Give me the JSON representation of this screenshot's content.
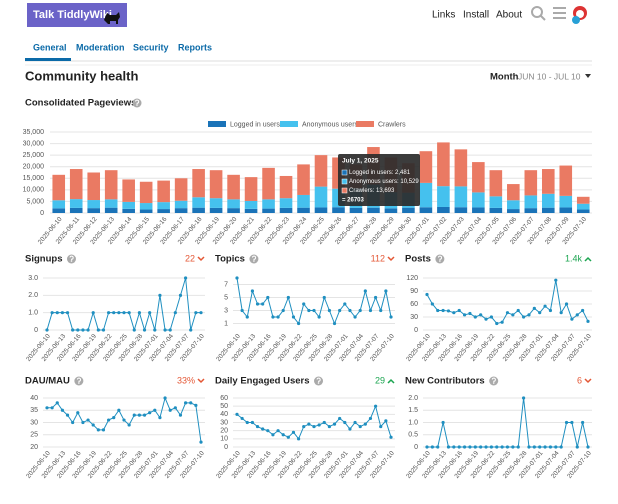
{
  "header": {
    "logo": "Talk TiddlyWiki",
    "links": [
      "Links",
      "Install",
      "About"
    ]
  },
  "tabs": {
    "items": [
      "General",
      "Moderation",
      "Security",
      "Reports"
    ],
    "active": 0
  },
  "section": {
    "title": "Community health",
    "period": "Month",
    "range": "JUN 10 - JUL 10"
  },
  "chart_data": [
    {
      "type": "bar",
      "stacked": true,
      "title": "Consolidated Pageviews",
      "categories": [
        "2025-06-10",
        "2025-06-11",
        "2025-06-12",
        "2025-06-13",
        "2025-06-14",
        "2025-06-15",
        "2025-06-16",
        "2025-06-17",
        "2025-06-18",
        "2025-06-19",
        "2025-06-20",
        "2025-06-21",
        "2025-06-22",
        "2025-06-23",
        "2025-06-24",
        "2025-06-25",
        "2025-06-26",
        "2025-06-27",
        "2025-06-28",
        "2025-06-29",
        "2025-06-30",
        "2025-07-01",
        "2025-07-02",
        "2025-07-03",
        "2025-07-04",
        "2025-07-05",
        "2025-07-06",
        "2025-07-07",
        "2025-07-08",
        "2025-07-09",
        "2025-07-10"
      ],
      "series": [
        {
          "name": "Logged in users",
          "color": "#1a73b8",
          "values": [
            2000,
            2200,
            2100,
            2300,
            1800,
            1500,
            1700,
            2100,
            2300,
            2200,
            2100,
            1800,
            1900,
            2200,
            2300,
            2400,
            2500,
            2200,
            2300,
            2000,
            2300,
            2481,
            2600,
            2500,
            2400,
            2200,
            1700,
            2100,
            2300,
            2400,
            1500
          ]
        },
        {
          "name": "Anonymous users",
          "color": "#45c1ee",
          "values": [
            3500,
            3800,
            3500,
            3600,
            3000,
            2800,
            3000,
            3200,
            4500,
            4200,
            3800,
            3400,
            4000,
            4200,
            5500,
            9000,
            8000,
            8500,
            10000,
            7000,
            6500,
            10529,
            9000,
            9000,
            6500,
            5000,
            3800,
            5500,
            6000,
            5000,
            2500
          ]
        },
        {
          "name": "Crawlers",
          "color": "#ea7a63",
          "values": [
            11000,
            13000,
            11900,
            12600,
            9700,
            9200,
            9300,
            9700,
            12200,
            12100,
            10600,
            10300,
            13600,
            9600,
            13200,
            13600,
            13500,
            10300,
            16200,
            15000,
            12700,
            13693,
            18900,
            16000,
            13100,
            11300,
            7000,
            10900,
            10700,
            13100,
            3000
          ]
        }
      ],
      "ylim": [
        0,
        35000
      ],
      "yticks": [
        0,
        {
          "value": 5000,
          "label": "5,000"
        },
        {
          "value": 10000,
          "label": "10,000"
        },
        {
          "value": 15000,
          "label": "15,000"
        },
        {
          "value": 20000,
          "label": "20,000"
        },
        {
          "value": 25000,
          "label": "25,000"
        },
        {
          "value": 30000,
          "label": "30,000"
        },
        {
          "value": 35000,
          "label": "35,000"
        }
      ],
      "grid": true,
      "legend": "top",
      "tooltip": {
        "title": "July 1, 2025",
        "lines": [
          "Logged in users: 2,481",
          "Anonymous users: 10,529",
          "Crawlers: 13,693"
        ],
        "total": "= 26703"
      }
    },
    {
      "type": "line",
      "title": "Signups",
      "change": "22",
      "trend": "down",
      "color": "#1f8fc0",
      "categories": [
        "2025-06-10",
        null,
        null,
        "2025-06-13",
        null,
        null,
        "2025-06-16",
        null,
        null,
        "2025-06-19",
        null,
        null,
        "2025-06-22",
        null,
        null,
        "2025-06-25",
        null,
        null,
        "2025-06-28",
        null,
        null,
        "2025-07-01",
        null,
        null,
        "2025-07-04",
        null,
        null,
        "2025-07-07",
        null,
        null,
        "2025-07-10"
      ],
      "values": [
        0,
        1,
        1,
        1,
        1,
        0,
        0,
        0,
        0,
        1,
        0,
        0,
        1,
        1,
        1,
        1,
        1,
        0,
        1,
        0,
        1,
        0,
        2,
        0,
        0,
        1,
        2,
        3,
        0,
        1,
        1
      ],
      "ylim": [
        0,
        3
      ],
      "yticks": [
        0,
        {
          "value": 1,
          "label": "1.0"
        },
        {
          "value": 2,
          "label": "2.0"
        },
        {
          "value": 3,
          "label": "3.0"
        }
      ],
      "grid": true
    },
    {
      "type": "line",
      "title": "Topics",
      "change": "112",
      "trend": "down",
      "color": "#1f8fc0",
      "categories": [
        "2025-06-10",
        null,
        null,
        "2025-06-13",
        null,
        null,
        "2025-06-16",
        null,
        null,
        "2025-06-19",
        null,
        null,
        "2025-06-22",
        null,
        null,
        "2025-06-25",
        null,
        null,
        "2025-06-28",
        null,
        null,
        "2025-07-01",
        null,
        null,
        "2025-07-04",
        null,
        null,
        "2025-07-07",
        null,
        null,
        "2025-07-10"
      ],
      "values": [
        8,
        3,
        2,
        6,
        4,
        4,
        5,
        2,
        2,
        3,
        5,
        2,
        1,
        4,
        3,
        3,
        2,
        5,
        3,
        1,
        3,
        4,
        3,
        2,
        3,
        6,
        3,
        5,
        3,
        6,
        2
      ],
      "ylim": [
        0,
        8
      ],
      "yticks": [
        1,
        3,
        5,
        7
      ],
      "grid": true
    },
    {
      "type": "line",
      "title": "Posts",
      "change": "1.4k",
      "trend": "up",
      "color": "#1f8fc0",
      "categories": [
        "2025-06-10",
        null,
        null,
        "2025-06-13",
        null,
        null,
        "2025-06-16",
        null,
        null,
        "2025-06-19",
        null,
        null,
        "2025-06-22",
        null,
        null,
        "2025-06-25",
        null,
        null,
        "2025-06-28",
        null,
        null,
        "2025-07-01",
        null,
        null,
        "2025-07-04",
        null,
        null,
        "2025-07-07",
        null,
        null,
        "2025-07-10"
      ],
      "values": [
        82,
        60,
        45,
        45,
        44,
        40,
        45,
        35,
        38,
        30,
        35,
        25,
        30,
        15,
        18,
        40,
        35,
        45,
        30,
        35,
        50,
        40,
        55,
        45,
        115,
        40,
        60,
        25,
        35,
        45,
        20
      ],
      "ylim": [
        0,
        120
      ],
      "yticks": [
        0,
        30,
        60,
        90,
        120
      ],
      "grid": true
    },
    {
      "type": "line",
      "title": "DAU/MAU",
      "change": "33%",
      "trend": "down",
      "color": "#1f8fc0",
      "categories": [
        "2025-06-10",
        null,
        null,
        "2025-06-13",
        null,
        null,
        "2025-06-16",
        null,
        null,
        "2025-06-19",
        null,
        null,
        "2025-06-22",
        null,
        null,
        "2025-06-25",
        null,
        null,
        "2025-06-28",
        null,
        null,
        "2025-07-01",
        null,
        null,
        "2025-07-04",
        null,
        null,
        "2025-07-07",
        null,
        null,
        "2025-07-10"
      ],
      "values": [
        36,
        36,
        38,
        35,
        33,
        30,
        34,
        30,
        31,
        29,
        27,
        27,
        31,
        32,
        35,
        31,
        29,
        33,
        33,
        33,
        34,
        35,
        32,
        40,
        35,
        36,
        33,
        38,
        38,
        37,
        22
      ],
      "ylim": [
        20,
        40
      ],
      "yticks": [
        20,
        25,
        30,
        35,
        40
      ],
      "grid": true
    },
    {
      "type": "line",
      "title": "Daily Engaged Users",
      "change": "29",
      "trend": "up",
      "color": "#1f8fc0",
      "categories": [
        "2025-06-10",
        null,
        null,
        "2025-06-13",
        null,
        null,
        "2025-06-16",
        null,
        null,
        "2025-06-19",
        null,
        null,
        "2025-06-22",
        null,
        null,
        "2025-06-25",
        null,
        null,
        "2025-06-28",
        null,
        null,
        "2025-07-01",
        null,
        null,
        "2025-07-04",
        null,
        null,
        "2025-07-07",
        null,
        null,
        "2025-07-10"
      ],
      "values": [
        40,
        35,
        30,
        30,
        25,
        22,
        20,
        15,
        20,
        15,
        12,
        18,
        10,
        25,
        28,
        25,
        27,
        30,
        25,
        28,
        35,
        30,
        22,
        30,
        25,
        28,
        35,
        50,
        25,
        32,
        12
      ],
      "ylim": [
        0,
        60
      ],
      "yticks": [
        0,
        10,
        20,
        30,
        40,
        50,
        60
      ],
      "grid": true
    },
    {
      "type": "line",
      "title": "New Contributors",
      "change": "6",
      "trend": "down",
      "color": "#1f8fc0",
      "categories": [
        "2025-06-10",
        null,
        null,
        "2025-06-13",
        null,
        null,
        "2025-06-16",
        null,
        null,
        "2025-06-19",
        null,
        null,
        "2025-06-22",
        null,
        null,
        "2025-06-25",
        null,
        null,
        "2025-06-28",
        null,
        null,
        "2025-07-01",
        null,
        null,
        "2025-07-04",
        null,
        null,
        "2025-07-07",
        null,
        null,
        "2025-07-10"
      ],
      "values": [
        0,
        0,
        0,
        1,
        0,
        0,
        0,
        0,
        0,
        0,
        0,
        0,
        0,
        0,
        0,
        0,
        0,
        0,
        2,
        0,
        0,
        0,
        0,
        0,
        0,
        0,
        1,
        1,
        0,
        1,
        0
      ],
      "ylim": [
        0,
        2
      ],
      "yticks": [
        0,
        {
          "value": 0.5,
          "label": "0.5"
        },
        {
          "value": 1,
          "label": "1.0"
        },
        {
          "value": 1.5,
          "label": "1.5"
        },
        {
          "value": 2,
          "label": "2.0"
        }
      ],
      "grid": true
    }
  ]
}
